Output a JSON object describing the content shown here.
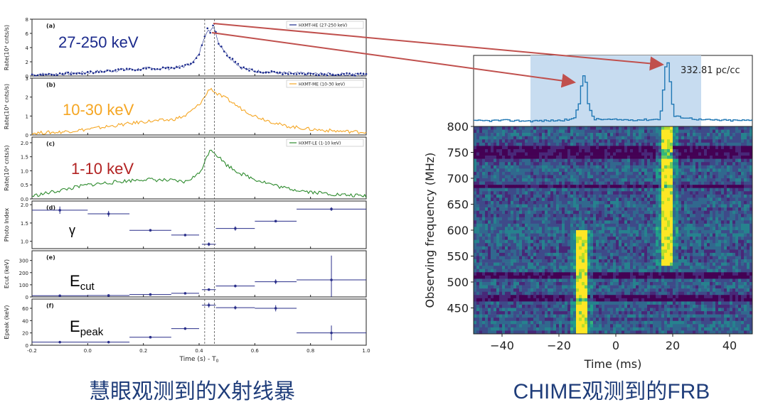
{
  "captions": {
    "left": "慧眼观测到的X射线暴",
    "right": "CHIME观测到的FRB"
  },
  "colors": {
    "he": "#1b2a8c",
    "me": "#f5a623",
    "le": "#2e8b2e",
    "params": "#2a2f8a",
    "frb_line": "#1f77b4",
    "frb_shade": "#c7dcf0",
    "arrow": "#c0504d",
    "caption": "#1f3d7a",
    "label_me": "#f5a623",
    "label_le": "#b22222",
    "label_he": "#1b2a8c"
  },
  "left_figure": {
    "xlabel": "Time (s) - T",
    "xlabel_sub": "0",
    "xlim": [
      -0.2,
      1.0
    ],
    "xticks": [
      "-0.2",
      "0.0",
      "0.2",
      "0.4",
      "0.6",
      "0.8",
      "1.0"
    ],
    "vlines": [
      0.42,
      0.455
    ],
    "panels": [
      {
        "key": "a",
        "tag": "(a)",
        "ylabel": "Rate(10⁴ cnts/s)",
        "ylim": [
          0,
          8
        ],
        "yticks": [
          "0",
          "2",
          "4",
          "6",
          "8"
        ],
        "legend": "HXMT-HE (27-250 keV)",
        "band": "27-250 keV"
      },
      {
        "key": "b",
        "tag": "(b)",
        "ylabel": "Rate(10⁴ cnts/s)",
        "ylim": [
          0,
          3
        ],
        "yticks": [
          "0",
          "1",
          "2",
          "3"
        ],
        "legend": "HXMT-ME (10-30 keV)",
        "band": "10-30 keV"
      },
      {
        "key": "c",
        "tag": "(c)",
        "ylabel": "Rate(10⁴ cnts/s)",
        "ylim": [
          0,
          2.2
        ],
        "yticks": [
          "0.0",
          "0.5",
          "1.0",
          "1.5",
          "2.0"
        ],
        "legend": "HXMT-LE (1-10 keV)",
        "band": "1-10 keV"
      },
      {
        "key": "d",
        "tag": "(d)",
        "ylabel": "Photo Index",
        "ylim": [
          0.8,
          2.1
        ],
        "yticks": [
          "1.0",
          "1.5",
          "2.0"
        ],
        "symbol": "γ"
      },
      {
        "key": "e",
        "tag": "(e)",
        "ylabel": "Ecut (keV)",
        "ylim": [
          0,
          380
        ],
        "yticks": [
          "0",
          "100",
          "200",
          "300"
        ],
        "symbol": "E",
        "symbol_sub": "cut"
      },
      {
        "key": "f",
        "tag": "(f)",
        "ylabel": "Epeak (keV)",
        "ylim": [
          0,
          75
        ],
        "yticks": [
          "0",
          "20",
          "40",
          "60"
        ],
        "symbol": "E",
        "symbol_sub": "peak"
      }
    ]
  },
  "chart_data": [
    {
      "type": "line",
      "title": "(a) HXMT-HE (27-250 keV)",
      "xlabel": "Time (s) - T0",
      "ylabel": "Rate(10^4 cnts/s)",
      "ylim": [
        0,
        8
      ],
      "x": [
        -0.2,
        -0.1,
        0.0,
        0.1,
        0.2,
        0.3,
        0.35,
        0.38,
        0.4,
        0.415,
        0.42,
        0.43,
        0.44,
        0.45,
        0.46,
        0.47,
        0.48,
        0.5,
        0.55,
        0.6,
        0.7,
        0.8,
        0.9,
        1.0
      ],
      "values": [
        0.2,
        0.3,
        0.5,
        0.8,
        1.0,
        1.1,
        1.4,
        2.0,
        3.0,
        5.2,
        5.6,
        6.6,
        6.0,
        7.1,
        6.2,
        4.5,
        4.2,
        3.0,
        1.2,
        0.7,
        0.4,
        0.3,
        0.25,
        0.2
      ]
    },
    {
      "type": "line",
      "title": "(b) HXMT-ME (10-30 keV)",
      "xlabel": "Time (s) - T0",
      "ylabel": "Rate(10^4 cnts/s)",
      "ylim": [
        0,
        3
      ],
      "x": [
        -0.2,
        -0.1,
        0.0,
        0.1,
        0.2,
        0.3,
        0.35,
        0.4,
        0.42,
        0.44,
        0.46,
        0.5,
        0.55,
        0.6,
        0.7,
        0.8,
        0.9,
        1.0
      ],
      "values": [
        0.1,
        0.15,
        0.3,
        0.5,
        0.7,
        0.8,
        1.0,
        1.6,
        2.0,
        2.5,
        2.2,
        1.9,
        1.4,
        1.0,
        0.5,
        0.3,
        0.2,
        0.15
      ]
    },
    {
      "type": "line",
      "title": "(c) HXMT-LE (1-10 keV)",
      "xlabel": "Time (s) - T0",
      "ylabel": "Rate(10^4 cnts/s)",
      "ylim": [
        0,
        2.2
      ],
      "x": [
        -0.2,
        -0.1,
        0.0,
        0.1,
        0.2,
        0.3,
        0.35,
        0.4,
        0.42,
        0.44,
        0.46,
        0.5,
        0.55,
        0.6,
        0.7,
        0.8,
        0.9,
        1.0
      ],
      "values": [
        0.1,
        0.3,
        0.5,
        0.6,
        0.7,
        0.65,
        0.6,
        0.9,
        1.3,
        1.8,
        1.6,
        1.2,
        0.9,
        0.7,
        0.4,
        0.25,
        0.15,
        0.1
      ]
    },
    {
      "type": "scatter",
      "title": "(d) Photo Index",
      "ylabel": "Photo Index",
      "ylim": [
        0.8,
        2.1
      ],
      "points": [
        {
          "x": -0.1,
          "xerr": 0.1,
          "y": 1.85,
          "yerr": 0.1
        },
        {
          "x": 0.075,
          "xerr": 0.075,
          "y": 1.75,
          "yerr": 0.08
        },
        {
          "x": 0.225,
          "xerr": 0.075,
          "y": 1.3,
          "yerr": 0.03
        },
        {
          "x": 0.35,
          "xerr": 0.05,
          "y": 1.17,
          "yerr": 0.03
        },
        {
          "x": 0.435,
          "xerr": 0.025,
          "y": 0.92,
          "yerr": 0.05
        },
        {
          "x": 0.53,
          "xerr": 0.07,
          "y": 1.35,
          "yerr": 0.06
        },
        {
          "x": 0.675,
          "xerr": 0.075,
          "y": 1.55,
          "yerr": 0.03
        },
        {
          "x": 0.875,
          "xerr": 0.125,
          "y": 1.88,
          "yerr": 0.05
        }
      ]
    },
    {
      "type": "scatter",
      "title": "(e) Ecut (keV)",
      "ylabel": "Ecut (keV)",
      "ylim": [
        0,
        380
      ],
      "points": [
        {
          "x": -0.1,
          "xerr": 0.1,
          "y": 10,
          "yerr": 5
        },
        {
          "x": 0.075,
          "xerr": 0.075,
          "y": 12,
          "yerr": 5
        },
        {
          "x": 0.225,
          "xerr": 0.075,
          "y": 20,
          "yerr": 4
        },
        {
          "x": 0.35,
          "xerr": 0.05,
          "y": 30,
          "yerr": 5
        },
        {
          "x": 0.435,
          "xerr": 0.025,
          "y": 60,
          "yerr": 8
        },
        {
          "x": 0.53,
          "xerr": 0.07,
          "y": 90,
          "yerr": 10
        },
        {
          "x": 0.675,
          "xerr": 0.075,
          "y": 125,
          "yerr": 20
        },
        {
          "x": 0.875,
          "xerr": 0.125,
          "y": 140,
          "yerr": 200
        }
      ]
    },
    {
      "type": "scatter",
      "title": "(f) Epeak (keV)",
      "ylabel": "Epeak (keV)",
      "ylim": [
        0,
        75
      ],
      "points": [
        {
          "x": -0.1,
          "xerr": 0.1,
          "y": 5,
          "yerr": 2
        },
        {
          "x": 0.075,
          "xerr": 0.075,
          "y": 5,
          "yerr": 2
        },
        {
          "x": 0.225,
          "xerr": 0.075,
          "y": 13,
          "yerr": 2
        },
        {
          "x": 0.35,
          "xerr": 0.05,
          "y": 27,
          "yerr": 2
        },
        {
          "x": 0.435,
          "xerr": 0.025,
          "y": 65,
          "yerr": 4
        },
        {
          "x": 0.53,
          "xerr": 0.07,
          "y": 61,
          "yerr": 3
        },
        {
          "x": 0.675,
          "xerr": 0.075,
          "y": 60,
          "yerr": 5
        },
        {
          "x": 0.875,
          "xerr": 0.125,
          "y": 20,
          "yerr": 12
        }
      ]
    },
    {
      "type": "line",
      "title": "CHIME FRB pulse profile",
      "annotation": "332.81 pc/cc",
      "xlim": [
        -50,
        48
      ],
      "shaded_region": [
        -30,
        30
      ],
      "x": [
        -50,
        -40,
        -30,
        -20,
        -15,
        -13,
        -12,
        -11,
        -10,
        -8,
        0,
        10,
        15,
        16,
        17,
        18,
        19,
        20,
        30,
        40,
        48
      ],
      "values": [
        0.02,
        0.03,
        0.02,
        0.03,
        0.05,
        0.35,
        0.8,
        0.75,
        0.3,
        0.05,
        0.04,
        0.04,
        0.05,
        0.3,
        0.9,
        1.0,
        0.6,
        0.1,
        0.04,
        0.03,
        0.03
      ]
    },
    {
      "type": "heatmap",
      "title": "CHIME FRB dynamic spectrum",
      "xlabel": "Time (ms)",
      "ylabel": "Observing frequency (MHz)",
      "xlim": [
        -50,
        48
      ],
      "ylim": [
        400,
        800
      ],
      "xticks": [
        -40,
        -20,
        0,
        20,
        40
      ],
      "yticks": [
        450,
        500,
        550,
        600,
        650,
        700,
        750,
        800
      ],
      "bursts": [
        {
          "time_ms": -12,
          "freq_range_mhz": [
            400,
            600
          ],
          "intensity": "high"
        },
        {
          "time_ms": 18,
          "freq_range_mhz": [
            530,
            800
          ],
          "intensity": "high"
        }
      ]
    }
  ],
  "frb": {
    "annotation": "332.81 pc/cc",
    "xlabel": "Time (ms)",
    "ylabel": "Observing frequency (MHz)",
    "xticks": [
      "−40",
      "−20",
      "0",
      "20",
      "40"
    ],
    "yticks": [
      "450",
      "500",
      "550",
      "600",
      "650",
      "700",
      "750",
      "800"
    ]
  }
}
